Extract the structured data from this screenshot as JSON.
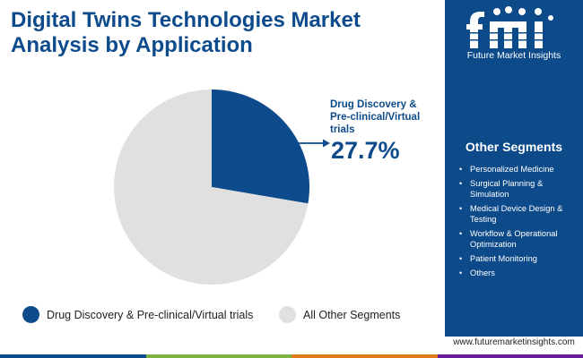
{
  "title": "Digital Twins Technologies Market Analysis by Application",
  "logo": {
    "mark": "fmi",
    "name": "Future Market Insights"
  },
  "colors": {
    "primary": "#0e4b8c",
    "panel": "#0d4a8a",
    "other": "#e0e0e0",
    "bar": [
      "#0d4a8a",
      "#7cb342",
      "#e07b1a",
      "#6a1b9a"
    ]
  },
  "chart_data": {
    "type": "pie",
    "title": "Digital Twins Technologies Market Analysis by Application",
    "slices": [
      {
        "label": "Drug Discovery & Pre-clinical/Virtual trials",
        "value": 27.7,
        "color": "#0e4b8c"
      },
      {
        "label": "All Other Segments",
        "value": 72.3,
        "color": "#e0e0e0"
      }
    ],
    "data_labels": [
      {
        "slice": "Drug Discovery & Pre-clinical/Virtual trials",
        "text": "27.7%"
      }
    ],
    "legend_placement": "bottom"
  },
  "callout": {
    "label": "Drug Discovery & Pre-clinical/Virtual trials",
    "value": "27.7%"
  },
  "legend": [
    {
      "label": "Drug Discovery & Pre-clinical/Virtual trials",
      "color": "#0e4b8c"
    },
    {
      "label": "All Other Segments",
      "color": "#e0e0e0"
    }
  ],
  "other_segments": {
    "title": "Other Segments",
    "items": [
      "Personalized Medicine",
      "Surgical Planning & Simulation",
      "Medical Device Design & Testing",
      "Workflow & Operational Optimization",
      "Patient Monitoring",
      "Others"
    ]
  },
  "website": "www.futuremarketinsights.com"
}
